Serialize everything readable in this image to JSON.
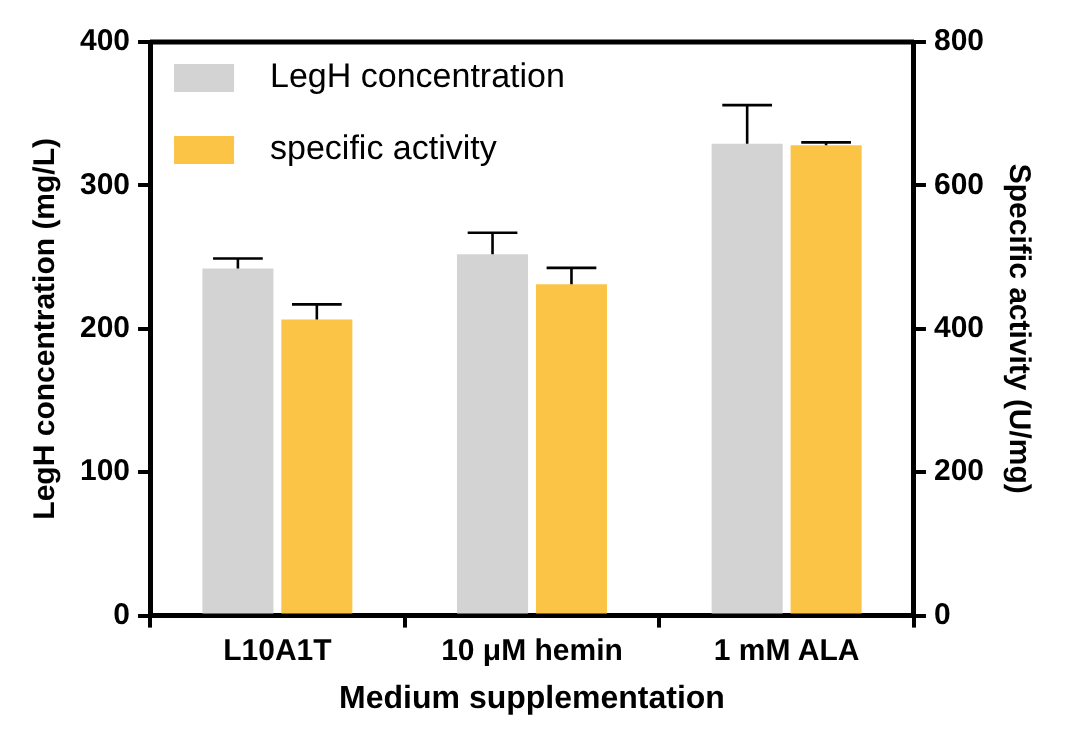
{
  "chart_data": {
    "type": "bar",
    "xlabel": "Medium supplementation",
    "ylabel": "LegH concentration (mg/L)",
    "y2label": "Specific activity (U/mg)",
    "categories": [
      "L10A1T",
      "10 μM hemin",
      "1 mM ALA"
    ],
    "series": [
      {
        "name": "LegH concentration",
        "color": "#d3d3d3",
        "values": [
          242,
          252,
          329
        ],
        "errors": [
          [
            242,
            249
          ],
          [
            252,
            267
          ],
          [
            329,
            356
          ]
        ]
      },
      {
        "name": "specific activity",
        "color": "#fbc447",
        "axis": "y2",
        "values": [
          413,
          462,
          656
        ],
        "errors": [
          [
            413,
            434
          ],
          [
            462,
            485
          ],
          [
            656,
            660
          ]
        ]
      }
    ],
    "ylim": [
      0,
      400
    ],
    "yticks": [
      0,
      100,
      200,
      300,
      400
    ],
    "y2lim": [
      0,
      800
    ],
    "y2ticks": [
      0,
      200,
      400,
      600,
      800
    ],
    "legend": "top left",
    "grid": false
  }
}
